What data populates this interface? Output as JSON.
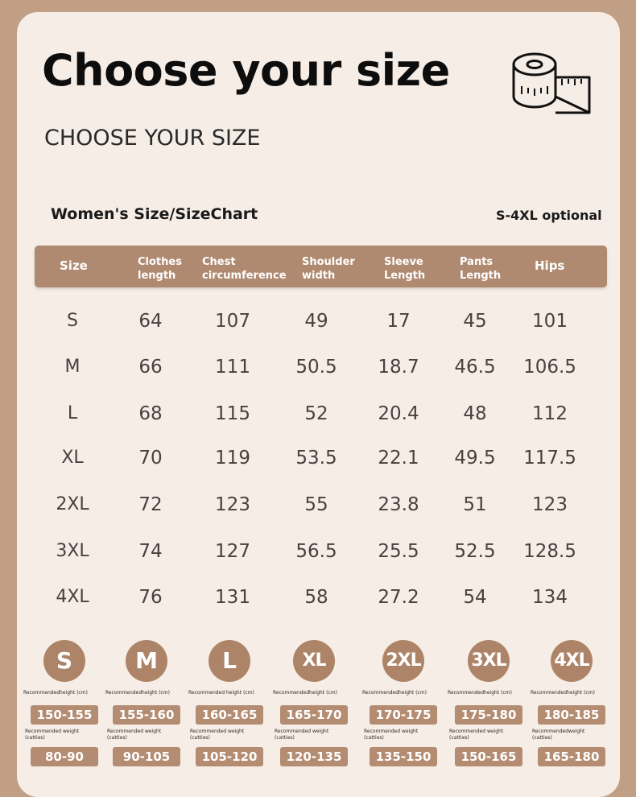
{
  "header": {
    "title": "Choose your size",
    "subtitle": "CHOOSE YOUR SIZE"
  },
  "chart": {
    "title": "Women's Size/SizeChart",
    "optional": "S-4XL optional",
    "columns": [
      {
        "line1": "Size",
        "line2": ""
      },
      {
        "line1": "Clothes",
        "line2": "length"
      },
      {
        "line1": "Chest",
        "line2": "circumference"
      },
      {
        "line1": "Shoulder",
        "line2": "width"
      },
      {
        "line1": "Sleeve",
        "line2": "Length"
      },
      {
        "line1": "Pants",
        "line2": "Length"
      },
      {
        "line1": "Hips",
        "line2": ""
      }
    ],
    "rows": [
      [
        "S",
        "64",
        "107",
        "49",
        "17",
        "45",
        "101"
      ],
      [
        "M",
        "66",
        "111",
        "50.5",
        "18.7",
        "46.5",
        "106.5"
      ],
      [
        "L",
        "68",
        "115",
        "52",
        "20.4",
        "48",
        "112"
      ],
      [
        "XL",
        "70",
        "119",
        "53.5",
        "22.1",
        "49.5",
        "117.5"
      ],
      [
        "2XL",
        "72",
        "123",
        "55",
        "23.8",
        "51",
        "123"
      ],
      [
        "3XL",
        "74",
        "127",
        "56.5",
        "25.5",
        "52.5",
        "128.5"
      ],
      [
        "4XL",
        "76",
        "131",
        "58",
        "27.2",
        "54",
        "134"
      ]
    ]
  },
  "recommend": [
    {
      "size": "S",
      "height_label": "Recommendedheight (cm)",
      "height": "150-155",
      "weight_label": "Recommended weight (catties)",
      "weight": "80-90"
    },
    {
      "size": "M",
      "height_label": "Recommendedheight (cm)",
      "height": "155-160",
      "weight_label": "Recommended weight (catties)",
      "weight": "90-105"
    },
    {
      "size": "L",
      "height_label": "Recommended height (cm)",
      "height": "160-165",
      "weight_label": "Recommended weight (catties)",
      "weight": "105-120"
    },
    {
      "size": "XL",
      "height_label": "Recommendedheight (cm)",
      "height": "165-170",
      "weight_label": "Recommended weight (catties)",
      "weight": "120-135"
    },
    {
      "size": "2XL",
      "height_label": "Recommendedheight (cm)",
      "height": "170-175",
      "weight_label": "Recommended weight (catties)",
      "weight": "135-150"
    },
    {
      "size": "3XL",
      "height_label": "Recommendedheight (cm)",
      "height": "175-180",
      "weight_label": "Recommended weight (catties)",
      "weight": "150-165"
    },
    {
      "size": "4XL",
      "height_label": "Recommendedheight (cm)",
      "height": "180-185",
      "weight_label": "Recommendedweight (catties)",
      "weight": "165-180"
    }
  ],
  "icons": {
    "tape": "measuring-tape-icon"
  },
  "colors": {
    "background": "#c19f84",
    "card": "#f6ede6",
    "accent": "#b08a70"
  }
}
